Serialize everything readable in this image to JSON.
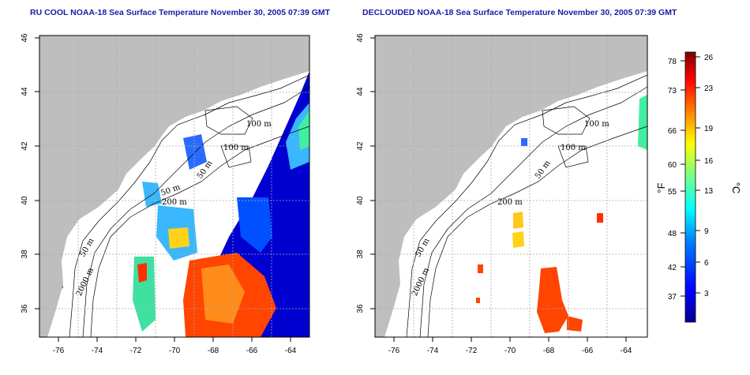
{
  "panels": [
    {
      "title": "RU COOL NOAA-18 Sea Surface Temperature November 30, 2005 07:39 GMT",
      "contour_labels": [
        "100 m",
        "100 m",
        "50 m",
        "50 m",
        "200 m",
        "50 m",
        "2000 m"
      ]
    },
    {
      "title": "DECLOUDED NOAA-18 Sea Surface Temperature November 30, 2005 07:39 GMT",
      "contour_labels": [
        "100 m",
        "100 m",
        "50 m",
        "200 m",
        "50 m",
        "2000 m"
      ]
    }
  ],
  "axes": {
    "x_ticks": [
      "-76",
      "-74",
      "-72",
      "-70",
      "-68",
      "-66",
      "-64"
    ],
    "y_ticks": [
      "46",
      "44",
      "42",
      "40",
      "38",
      "36"
    ]
  },
  "colorbar": {
    "fahrenheit_ticks": [
      "78",
      "73",
      "66",
      "60",
      "55",
      "48",
      "42",
      "37"
    ],
    "celsius_ticks": [
      "26",
      "23",
      "19",
      "16",
      "13",
      "9",
      "6",
      "3"
    ],
    "fahrenheit_unit": "°F",
    "celsius_unit": "°C"
  },
  "colors": {
    "title": "#1a1aa8",
    "land": "#bebebe",
    "grid": "#aaaaaa",
    "cold": "#00008f",
    "warm": "#ff4500",
    "hot": "#800000"
  }
}
